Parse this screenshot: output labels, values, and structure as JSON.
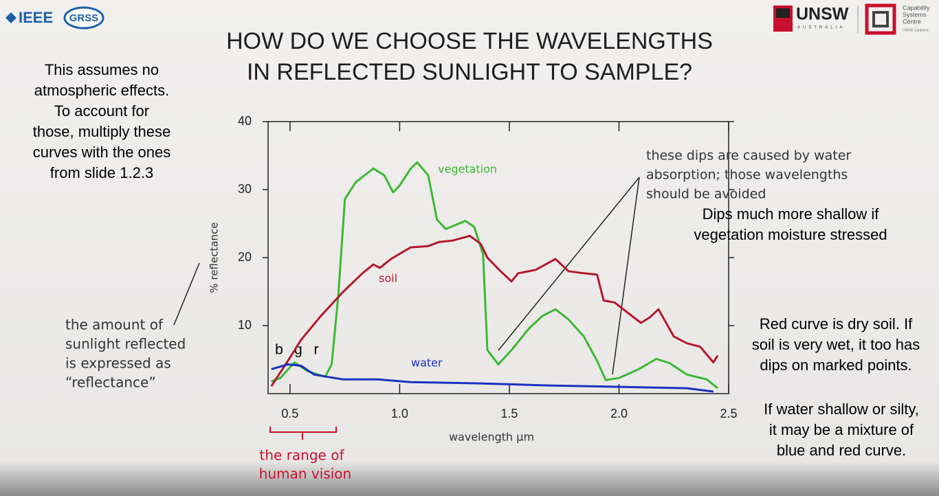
{
  "header": {
    "logo_left": "IEEE",
    "logo_left_badge": "GRSS",
    "logo_right": "UNSW",
    "logo_right_sub": "AUSTRALIA",
    "partner": [
      "Capability",
      "Systems",
      "Centre"
    ],
    "partner_sub": "UNSW Canberra"
  },
  "chart_data": {
    "type": "line",
    "title": [
      "HOW DO WE CHOOSE THE WAVELENGTHS",
      "IN REFLECTED SUNLIGHT TO SAMPLE?"
    ],
    "x_label": "wavelength μm",
    "y_label": "% reflectance",
    "xlim": [
      0.4,
      2.5
    ],
    "ylim": [
      0,
      40
    ],
    "xticks": [
      0.5,
      {
        "value": 1,
        "label": "1.0"
      },
      1.5,
      {
        "value": 2,
        "label": "2.0"
      },
      2.5
    ],
    "yticks": [
      10,
      20,
      30,
      40
    ],
    "series": [
      {
        "name": "vegetation",
        "color": "#3cb832",
        "x": [
          0.415,
          0.456,
          0.52,
          0.58,
          0.66,
          0.69,
          0.72,
          0.75,
          0.8,
          0.88,
          0.93,
          0.97,
          1.0,
          1.05,
          1.08,
          1.13,
          1.17,
          1.21,
          1.3,
          1.34,
          1.38,
          1.4,
          1.45,
          1.51,
          1.59,
          1.65,
          1.71,
          1.77,
          1.84,
          1.9,
          1.94,
          2.0,
          2.09,
          2.17,
          2.23,
          2.31,
          2.4,
          2.45
        ],
        "values": [
          1.8,
          2.3,
          4.6,
          3.3,
          2.5,
          4.3,
          14.4,
          28.6,
          31.1,
          33.1,
          32.1,
          29.6,
          30.6,
          33.1,
          34.0,
          32.1,
          25.6,
          24.2,
          25.4,
          24.5,
          20.5,
          6.4,
          4.3,
          6.4,
          9.6,
          11.4,
          12.4,
          10.9,
          8.4,
          4.8,
          2.0,
          2.3,
          3.6,
          5.1,
          4.5,
          2.8,
          2.1,
          0.8
        ]
      },
      {
        "name": "soil",
        "color": "#b5182b",
        "x": [
          0.415,
          0.49,
          0.55,
          0.64,
          0.74,
          0.83,
          0.88,
          0.91,
          0.96,
          1.05,
          1.13,
          1.18,
          1.24,
          1.32,
          1.37,
          1.4,
          1.46,
          1.51,
          1.54,
          1.62,
          1.71,
          1.77,
          1.84,
          1.9,
          1.93,
          1.98,
          2.04,
          2.1,
          2.14,
          2.18,
          2.25,
          2.31,
          2.37,
          2.43,
          2.45
        ],
        "values": [
          1.1,
          4.8,
          7.9,
          11.4,
          14.9,
          17.7,
          19.0,
          18.5,
          19.8,
          21.5,
          21.7,
          22.3,
          22.5,
          23.2,
          22.0,
          20.0,
          18.0,
          16.5,
          17.7,
          18.2,
          19.8,
          18.0,
          17.7,
          17.5,
          13.7,
          13.4,
          11.9,
          10.4,
          11.2,
          12.4,
          8.4,
          7.4,
          6.9,
          4.6,
          5.6
        ]
      },
      {
        "name": "water",
        "color": "#1a2fbf",
        "x": [
          0.415,
          0.49,
          0.55,
          0.61,
          0.74,
          0.9,
          1.05,
          1.37,
          1.68,
          2.0,
          2.31,
          2.43
        ],
        "values": [
          3.6,
          4.3,
          4.1,
          2.8,
          2.1,
          2.1,
          1.7,
          1.5,
          1.2,
          1.0,
          0.8,
          0.3
        ]
      }
    ],
    "annotations": {
      "water_dips": [
        "these dips are caused by water",
        "absorption; those wavelengths",
        "should be avoided"
      ],
      "reflectance": [
        "the amount of",
        "sunlight reflected",
        "is expressed as",
        "“reflectance”"
      ],
      "human_vision": [
        "the range of",
        "human vision"
      ],
      "bands": [
        "b",
        "g",
        "r"
      ]
    }
  },
  "notes": {
    "left": [
      "This assumes no",
      "atmospheric effects.",
      "To account for",
      "those, multiply these",
      "curves with the ones",
      "from slide 1.2.3"
    ],
    "right_top": [
      "Dips much more shallow if",
      "vegetation moisture stressed"
    ],
    "right_mid": [
      "Red curve is dry soil. If",
      "soil is very wet, it too has",
      "dips on marked points."
    ],
    "right_bottom": [
      "If water shallow or silty,",
      "it may be a mixture of",
      "blue and red curve."
    ]
  }
}
